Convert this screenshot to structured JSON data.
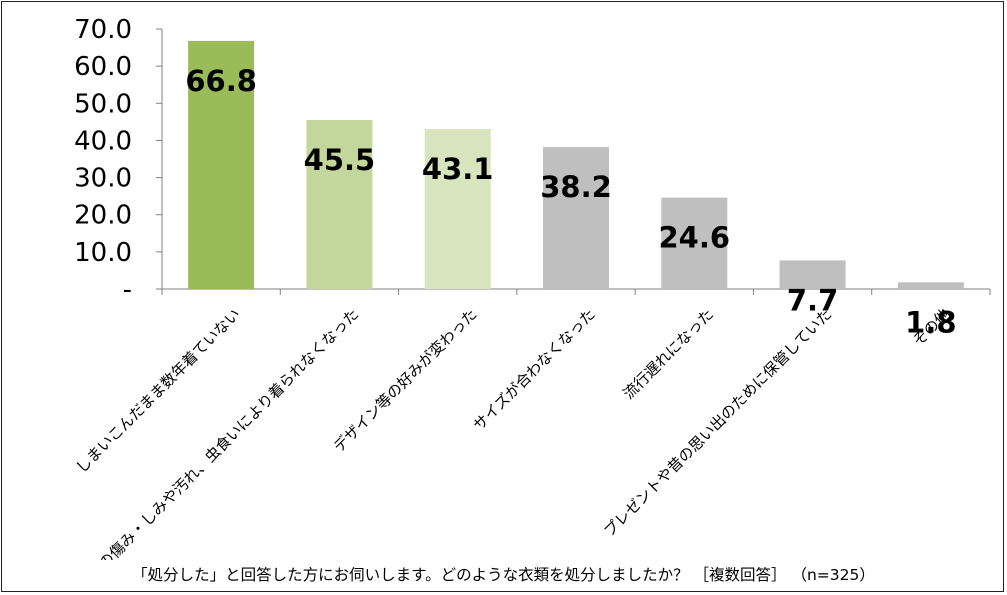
{
  "chart_data": {
    "type": "bar",
    "categories": [
      "しまいこんだまま数年着ていない",
      "生地の傷み・しみや汚れ、虫食いにより着られなくなった",
      "デザイン等の好みが変わった",
      "サイズが合わなくなった",
      "流行遅れになった",
      "プレゼントや昔の思い出のために保管していた",
      "その他"
    ],
    "values": [
      66.8,
      45.5,
      43.1,
      38.2,
      24.6,
      7.7,
      1.8
    ],
    "value_labels": [
      "66.8",
      "45.5",
      "43.1",
      "38.2",
      "24.6",
      "7.7",
      "1.8"
    ],
    "bar_colors": [
      "#9BBB59",
      "#C3D69B",
      "#D7E4BD",
      "#BFBFBF",
      "#BFBFBF",
      "#BFBFBF",
      "#BFBFBF"
    ],
    "yticks": [
      "-",
      "10.0",
      "20.0",
      "30.0",
      "40.0",
      "50.0",
      "60.0",
      "70.0"
    ],
    "ylim": [
      0,
      70
    ],
    "grid": false,
    "legend": "none"
  },
  "caption": "「処分した」と回答した方にお伺いします。どのような衣類を処分しましたか？ ［複数回答］ （n=325）"
}
